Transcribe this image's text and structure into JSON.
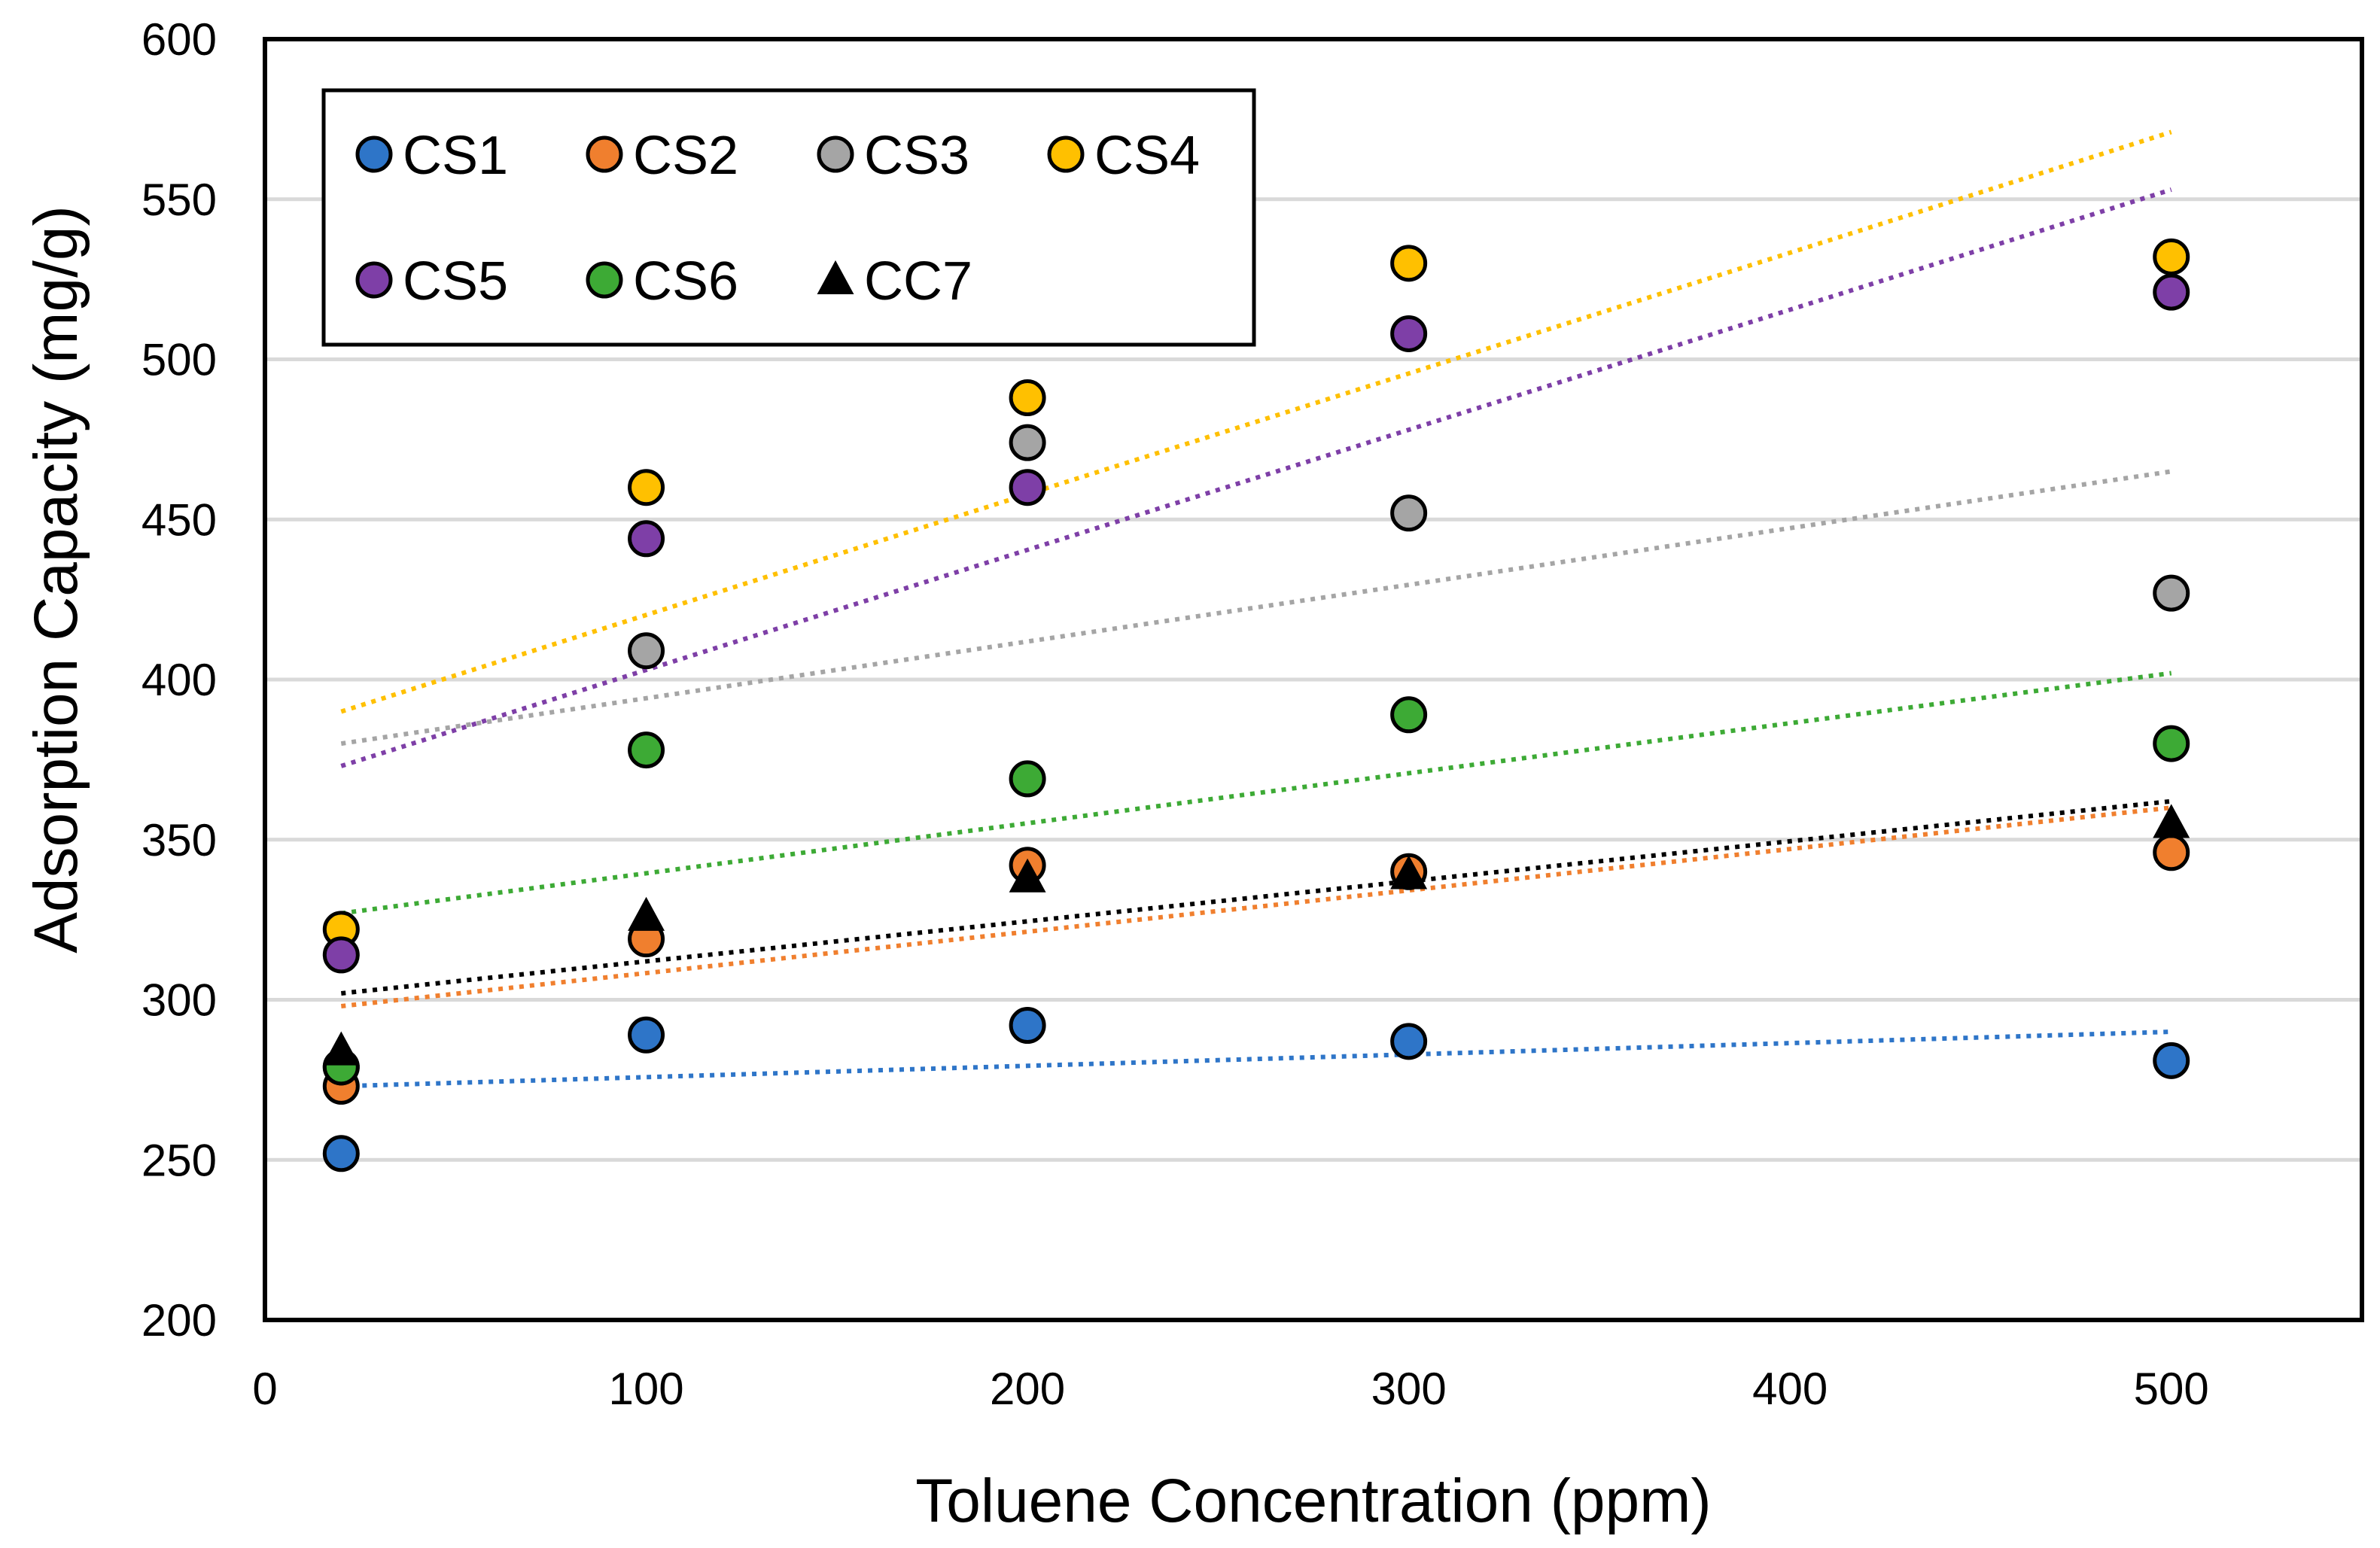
{
  "chart_data": {
    "type": "scatter",
    "title": "",
    "xlabel": "Toluene Concentration (ppm)",
    "ylabel": "Adsorption Capacity (mg/g)",
    "xlim": [
      0,
      550
    ],
    "ylim": [
      200,
      600
    ],
    "x_ticks": [
      0,
      100,
      200,
      300,
      400,
      500
    ],
    "y_ticks": [
      200,
      250,
      300,
      350,
      400,
      450,
      500,
      550,
      600
    ],
    "grid": "horizontal",
    "legend_position": "top-left",
    "x": [
      20,
      100,
      200,
      300,
      500
    ],
    "series": [
      {
        "name": "CS1",
        "marker": "circle",
        "color": "#2E75C8",
        "values": [
          252,
          289,
          292,
          287,
          281
        ],
        "trendline": [
          273,
          290
        ]
      },
      {
        "name": "CS2",
        "marker": "circle",
        "color": "#F07F2E",
        "values": [
          273,
          319,
          342,
          340,
          346
        ],
        "trendline": [
          298,
          360
        ]
      },
      {
        "name": "CS3",
        "marker": "circle",
        "color": "#A5A5A5",
        "values": [
          279,
          409,
          474,
          452,
          427
        ],
        "trendline": [
          380,
          465
        ]
      },
      {
        "name": "CS4",
        "marker": "circle",
        "color": "#FFC000",
        "values": [
          322,
          460,
          488,
          530,
          532
        ],
        "trendline": [
          390,
          571
        ]
      },
      {
        "name": "CS5",
        "marker": "circle",
        "color": "#7E3FA7",
        "values": [
          314,
          444,
          460,
          508,
          521
        ],
        "trendline": [
          373,
          553
        ]
      },
      {
        "name": "CS6",
        "marker": "circle",
        "color": "#3DAA35",
        "values": [
          279,
          378,
          369,
          389,
          380
        ],
        "trendline": [
          327,
          402
        ]
      },
      {
        "name": "CC7",
        "marker": "triangle",
        "color": "#000000",
        "values": [
          284,
          326,
          338,
          339,
          355
        ],
        "trendline": [
          302,
          362
        ]
      }
    ]
  }
}
